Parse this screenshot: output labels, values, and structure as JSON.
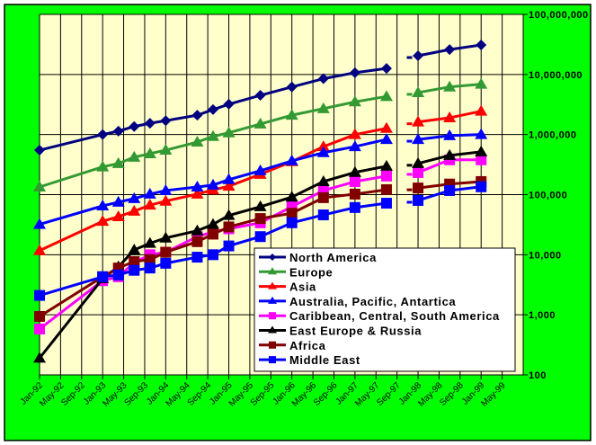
{
  "chart_data": {
    "type": "line",
    "title": "",
    "xlabel": "",
    "ylabel": "",
    "y_scale": "log",
    "ylim": [
      100,
      100000000
    ],
    "y_ticks": [
      "100",
      "1,000",
      "10,000",
      "100,000",
      "1,000,000",
      "10,000,000",
      "100,000,000"
    ],
    "y_axis_side": "right",
    "x_range": [
      "Jan-92",
      "Sep-99"
    ],
    "x_ticks": [
      "Jan-92",
      "May-92",
      "Sep-92",
      "Jan-93",
      "May-93",
      "Sep-93",
      "Jan-94",
      "May-94",
      "Sep-94",
      "Jan-95",
      "May-95",
      "Sep-95",
      "Jan-96",
      "May-96",
      "Sep-96",
      "Jan-97",
      "May-97",
      "Sep-97",
      "Jan-98",
      "May-98",
      "Sep-98",
      "Jan-99",
      "May-99"
    ],
    "grid": true,
    "legend_position": "bottom-right",
    "x": [
      "Jan-92",
      "Jan-93",
      "Apr-93",
      "Jul-93",
      "Oct-93",
      "Jan-94",
      "Jul-94",
      "Oct-94",
      "Jan-95",
      "Jul-95",
      "Jan-96",
      "Jul-96",
      "Jan-97",
      "Jul-97",
      "Oct-97",
      "Jan-98",
      "Jul-98",
      "Jan-99"
    ],
    "series": [
      {
        "name": "North America",
        "color": "#000080",
        "marker": "diamond",
        "values": [
          550000,
          1000000,
          1140000,
          1360000,
          1540000,
          1700000,
          2100000,
          2600000,
          3200000,
          4500000,
          6200000,
          8500000,
          10700000,
          12600000,
          null,
          20500000,
          26000000,
          31000000
        ]
      },
      {
        "name": "Europe",
        "color": "#339933",
        "marker": "triangle",
        "values": [
          134000,
          290000,
          330000,
          420000,
          480000,
          550000,
          750000,
          930000,
          1070000,
          1500000,
          2100000,
          2700000,
          3500000,
          4300000,
          null,
          5000000,
          6200000,
          6900000
        ]
      },
      {
        "name": "Asia",
        "color": "#FF0000",
        "marker": "triangle",
        "values": [
          11700,
          36000,
          43000,
          53000,
          67000,
          78000,
          102000,
          120000,
          138000,
          218000,
          355000,
          630000,
          1000000,
          1270000,
          null,
          1620000,
          1900000,
          2450000
        ]
      },
      {
        "name": "Australia, Pacific, Antartica",
        "color": "#0000FF",
        "marker": "triangle",
        "values": [
          32000,
          65000,
          75000,
          86000,
          102000,
          117000,
          134000,
          144000,
          178000,
          250000,
          365000,
          500000,
          630000,
          830000,
          null,
          830000,
          960000,
          1000000
        ]
      },
      {
        "name": "Caribbean, Central, South America",
        "color": "#FF00FF",
        "marker": "square",
        "values": [
          580,
          3700,
          4300,
          7400,
          10000,
          11000,
          20000,
          24000,
          27000,
          34000,
          63000,
          117000,
          165000,
          204000,
          null,
          233000,
          380000,
          380000
        ]
      },
      {
        "name": "East Europe & Russia",
        "color": "#000000",
        "marker": "triangle",
        "values": [
          190,
          4000,
          6300,
          12000,
          15500,
          19000,
          25000,
          32000,
          45000,
          63000,
          91000,
          165000,
          235000,
          297000,
          null,
          330000,
          450000,
          515000
        ]
      },
      {
        "name": "Africa",
        "color": "#800000",
        "marker": "square",
        "values": [
          940,
          4300,
          6000,
          7700,
          8300,
          11000,
          16500,
          22000,
          29000,
          40000,
          49000,
          89000,
          102000,
          121000,
          null,
          129000,
          150000,
          165000
        ]
      },
      {
        "name": "Middle East",
        "color": "#0000FF",
        "marker": "square",
        "values": [
          2100,
          4300,
          4600,
          5500,
          6000,
          7200,
          9100,
          10000,
          14000,
          20000,
          34000,
          46000,
          61000,
          72000,
          null,
          80000,
          117000,
          135000
        ]
      }
    ]
  },
  "colors": {
    "background": "#00FF00",
    "plot_area": "#FFFFCC",
    "legend_bg": "#FFFFFF"
  }
}
